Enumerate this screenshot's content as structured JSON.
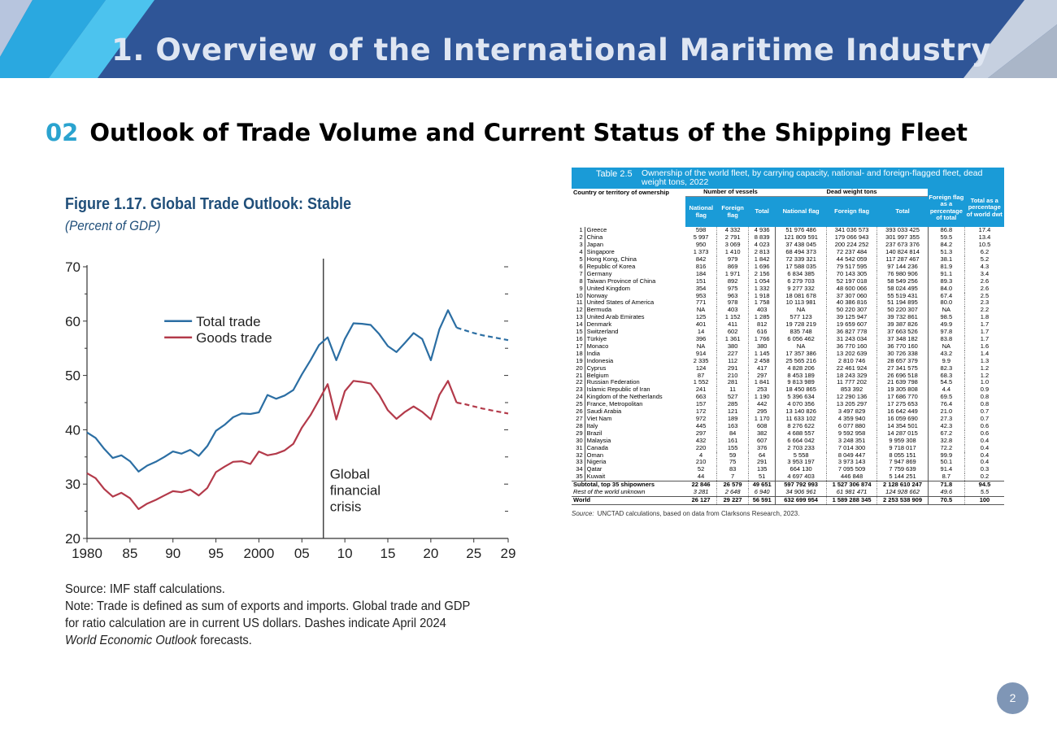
{
  "header": {
    "title": "1. Overview of the International Maritime Industry"
  },
  "section": {
    "number": "02",
    "title": "Outlook of Trade Volume and Current Status of the Shipping Fleet"
  },
  "figure": {
    "title": "Figure 1.17. Global Trade Outlook: Stable",
    "subtitle": "(Percent of GDP)",
    "source": "Source: IMF staff calculations.",
    "note_prefix": "Note: Trade is defined as sum of exports and imports. Global trade and GDP for ratio calculation are in current US dollars. Dashes indicate April 2024 ",
    "note_italic": "World Economic Outlook",
    "note_suffix": " forecasts."
  },
  "chart_data": {
    "type": "line",
    "xlim": [
      1980,
      2029
    ],
    "ylim": [
      20,
      70
    ],
    "x_ticks": [
      "1980",
      "85",
      "90",
      "95",
      "2000",
      "05",
      "10",
      "15",
      "20",
      "25",
      "29"
    ],
    "x_tick_values": [
      1980,
      1985,
      1990,
      1995,
      2000,
      2005,
      2010,
      2015,
      2020,
      2025,
      2029
    ],
    "y_ticks": [
      20,
      30,
      40,
      50,
      60,
      70
    ],
    "annotation": {
      "text": [
        "Global",
        "financial",
        "crisis"
      ],
      "x": 2007.5
    },
    "forecast_from": 2023,
    "series": [
      {
        "name": "Total trade",
        "color": "#2b6ea3",
        "x": [
          1980,
          1981,
          1982,
          1983,
          1984,
          1985,
          1986,
          1987,
          1988,
          1989,
          1990,
          1991,
          1992,
          1993,
          1994,
          1995,
          1996,
          1997,
          1998,
          1999,
          2000,
          2001,
          2002,
          2003,
          2004,
          2005,
          2006,
          2007,
          2008,
          2009,
          2010,
          2011,
          2012,
          2013,
          2014,
          2015,
          2016,
          2017,
          2018,
          2019,
          2020,
          2021,
          2022,
          2023,
          2024,
          2025,
          2026,
          2027,
          2028,
          2029
        ],
        "values": [
          39.5,
          38.5,
          36.5,
          34.8,
          35.3,
          34.2,
          32.3,
          33.4,
          34.1,
          35.0,
          36.0,
          35.6,
          36.3,
          35.2,
          37.0,
          39.8,
          40.9,
          42.3,
          43.0,
          42.9,
          43.2,
          46.4,
          45.7,
          46.3,
          47.3,
          50.2,
          52.8,
          55.6,
          57.0,
          52.8,
          56.7,
          59.6,
          59.5,
          59.3,
          57.6,
          55.4,
          54.3,
          56.0,
          57.8,
          56.7,
          52.8,
          58.5,
          62.0,
          58.8,
          58.3,
          57.8,
          57.4,
          57.1,
          56.8,
          56.5
        ]
      },
      {
        "name": "Goods trade",
        "color": "#b33a4a",
        "x": [
          1980,
          1981,
          1982,
          1983,
          1984,
          1985,
          1986,
          1987,
          1988,
          1989,
          1990,
          1991,
          1992,
          1993,
          1994,
          1995,
          1996,
          1997,
          1998,
          1999,
          2000,
          2001,
          2002,
          2003,
          2004,
          2005,
          2006,
          2007,
          2008,
          2009,
          2010,
          2011,
          2012,
          2013,
          2014,
          2015,
          2016,
          2017,
          2018,
          2019,
          2020,
          2021,
          2022,
          2023,
          2024,
          2025,
          2026,
          2027,
          2028,
          2029
        ],
        "values": [
          32.0,
          31.1,
          29.1,
          27.7,
          28.4,
          27.4,
          25.4,
          26.4,
          27.1,
          27.9,
          28.7,
          28.5,
          29.0,
          27.9,
          29.3,
          32.2,
          33.2,
          34.1,
          34.2,
          33.7,
          36.0,
          35.3,
          35.6,
          36.2,
          37.4,
          40.4,
          42.7,
          45.5,
          48.4,
          41.9,
          47.1,
          49.0,
          48.8,
          48.5,
          46.4,
          43.6,
          42.0,
          43.3,
          44.3,
          43.3,
          41.9,
          46.4,
          49.0,
          45.0,
          44.7,
          44.3,
          43.9,
          43.6,
          43.3,
          43.0
        ]
      }
    ]
  },
  "table": {
    "number": "Table 2.5",
    "caption": "Ownership of the world fleet, by carrying capacity, national- and foreign-flagged fleet, dead weight tons, 2022",
    "headers": {
      "country": "Country or territory of ownership",
      "vessels_group": "Number of vessels",
      "dwt_group": "Dead weight tons",
      "national_flag": "National flag",
      "foreign_flag": "Foreign flag",
      "total": "Total",
      "dwt_national": "National flag",
      "dwt_foreign": "Foreign flag",
      "dwt_total": "Total",
      "foreign_pct": "Foreign flag as a percentage of total",
      "world_pct": "Total as a percentage of world dwt"
    },
    "rows": [
      [
        "1",
        "Greece",
        "598",
        "4 332",
        "4 936",
        "51 976 486",
        "341 036 573",
        "393 033 425",
        "86.8",
        "17.4"
      ],
      [
        "2",
        "China",
        "5 997",
        "2 791",
        "8 839",
        "121 809 591",
        "179 066 943",
        "301 997 355",
        "59.5",
        "13.4"
      ],
      [
        "3",
        "Japan",
        "950",
        "3 069",
        "4 023",
        "37 438 045",
        "200 224 252",
        "237 673 376",
        "84.2",
        "10.5"
      ],
      [
        "4",
        "Singapore",
        "1 373",
        "1 410",
        "2 813",
        "68 494 373",
        "72 237 484",
        "140 824 814",
        "51.3",
        "6.2"
      ],
      [
        "5",
        "Hong Kong, China",
        "842",
        "979",
        "1 842",
        "72 339 321",
        "44 542 059",
        "117 287 467",
        "38.1",
        "5.2"
      ],
      [
        "6",
        "Republic of Korea",
        "816",
        "869",
        "1 696",
        "17 588 035",
        "79 517 595",
        "97 144 236",
        "81.9",
        "4.3"
      ],
      [
        "7",
        "Germany",
        "184",
        "1 971",
        "2 156",
        "6 834 385",
        "70 143 305",
        "76 980 906",
        "91.1",
        "3.4"
      ],
      [
        "8",
        "Taiwan Province of China",
        "151",
        "892",
        "1 054",
        "6 279 703",
        "52 197 018",
        "58 549 256",
        "89.3",
        "2.6"
      ],
      [
        "9",
        "United Kingdom",
        "354",
        "975",
        "1 332",
        "9 277 332",
        "48 600 066",
        "58 024 495",
        "84.0",
        "2.6"
      ],
      [
        "10",
        "Norway",
        "953",
        "963",
        "1 918",
        "18 081 678",
        "37 307 060",
        "55 519 431",
        "67.4",
        "2.5"
      ],
      [
        "11",
        "United States of America",
        "771",
        "978",
        "1 758",
        "10 113 981",
        "40 386 816",
        "51 194 895",
        "80.0",
        "2.3"
      ],
      [
        "12",
        "Bermuda",
        "NA",
        "403",
        "403",
        "NA",
        "50 220 307",
        "50 220 307",
        "NA",
        "2.2"
      ],
      [
        "13",
        "United Arab Emirates",
        "125",
        "1 152",
        "1 285",
        "577 123",
        "39 125 947",
        "39 732 861",
        "98.5",
        "1.8"
      ],
      [
        "14",
        "Denmark",
        "401",
        "411",
        "812",
        "19 728 219",
        "19 659 607",
        "39 387 826",
        "49.9",
        "1.7"
      ],
      [
        "15",
        "Switzerland",
        "14",
        "602",
        "616",
        "835 748",
        "36 827 778",
        "37 663 526",
        "97.8",
        "1.7"
      ],
      [
        "16",
        "Türkiye",
        "396",
        "1 361",
        "1 766",
        "6 056 462",
        "31 243 034",
        "37 348 182",
        "83.8",
        "1.7"
      ],
      [
        "17",
        "Monaco",
        "NA",
        "380",
        "380",
        "NA",
        "36 770 160",
        "36 770 160",
        "NA",
        "1.6"
      ],
      [
        "18",
        "India",
        "914",
        "227",
        "1 145",
        "17 357 386",
        "13 202 639",
        "30 726 338",
        "43.2",
        "1.4"
      ],
      [
        "19",
        "Indonesia",
        "2 335",
        "112",
        "2 458",
        "25 565 216",
        "2 810 746",
        "28 657 379",
        "9.9",
        "1.3"
      ],
      [
        "20",
        "Cyprus",
        "124",
        "291",
        "417",
        "4 828 206",
        "22 461 924",
        "27 341 575",
        "82.3",
        "1.2"
      ],
      [
        "21",
        "Belgium",
        "87",
        "210",
        "297",
        "8 453 189",
        "18 243 329",
        "26 696 518",
        "68.3",
        "1.2"
      ],
      [
        "22",
        "Russian Federation",
        "1 552",
        "281",
        "1 841",
        "9 813 989",
        "11 777 202",
        "21 639 798",
        "54.5",
        "1.0"
      ],
      [
        "23",
        "Islamic Republic of Iran",
        "241",
        "11",
        "253",
        "18 450 865",
        "853 392",
        "19 305 808",
        "4.4",
        "0.9"
      ],
      [
        "24",
        "Kingdom of the Netherlands",
        "663",
        "527",
        "1 190",
        "5 396 634",
        "12 290 136",
        "17 686 770",
        "69.5",
        "0.8"
      ],
      [
        "25",
        "France, Metropolitan",
        "157",
        "285",
        "442",
        "4 070 356",
        "13 205 297",
        "17 275 653",
        "76.4",
        "0.8"
      ],
      [
        "26",
        "Saudi Arabia",
        "172",
        "121",
        "295",
        "13 140 826",
        "3 497 829",
        "16 642 449",
        "21.0",
        "0.7"
      ],
      [
        "27",
        "Viet Nam",
        "972",
        "189",
        "1 170",
        "11 633 102",
        "4 359 940",
        "16 059 690",
        "27.3",
        "0.7"
      ],
      [
        "28",
        "Italy",
        "445",
        "163",
        "608",
        "8 276 622",
        "6 077 880",
        "14 354 501",
        "42.3",
        "0.6"
      ],
      [
        "29",
        "Brazil",
        "297",
        "84",
        "382",
        "4 688 557",
        "9 592 958",
        "14 287 015",
        "67.2",
        "0.6"
      ],
      [
        "30",
        "Malaysia",
        "432",
        "161",
        "607",
        "6 664 042",
        "3 248 351",
        "9 959 308",
        "32.8",
        "0.4"
      ],
      [
        "31",
        "Canada",
        "220",
        "155",
        "376",
        "2 703 233",
        "7 014 300",
        "9 718 017",
        "72.2",
        "0.4"
      ],
      [
        "32",
        "Oman",
        "4",
        "59",
        "64",
        "5 558",
        "8 049 447",
        "8 055 151",
        "99.9",
        "0.4"
      ],
      [
        "33",
        "Nigeria",
        "210",
        "75",
        "291",
        "3 953 197",
        "3 973 143",
        "7 947 869",
        "50.1",
        "0.4"
      ],
      [
        "34",
        "Qatar",
        "52",
        "83",
        "135",
        "664 130",
        "7 095 509",
        "7 759 639",
        "91.4",
        "0.3"
      ],
      [
        "35",
        "Kuwait",
        "44",
        "7",
        "51",
        "4 697 403",
        "446 848",
        "5 144 251",
        "8.7",
        "0.2"
      ]
    ],
    "subtotal": [
      "Subtotal, top 35 shipowners",
      "22 846",
      "26 579",
      "49 651",
      "597 792 993",
      "1 527 306 874",
      "2 128 610 247",
      "71.8",
      "94.5"
    ],
    "rest": [
      "Rest of the world unknown",
      "3 281",
      "2 648",
      "6 940",
      "34 906 961",
      "61 981 471",
      "124 928 662",
      "49.6",
      "5.5"
    ],
    "world": [
      "World",
      "26 127",
      "29 227",
      "56 591",
      "632 699 954",
      "1 589 288 345",
      "2 253 538 909",
      "70.5",
      "100"
    ],
    "source_label": "Source:",
    "source_text": "UNCTAD calculations, based on data from Clarksons Research, 2023."
  },
  "page_number": "2"
}
